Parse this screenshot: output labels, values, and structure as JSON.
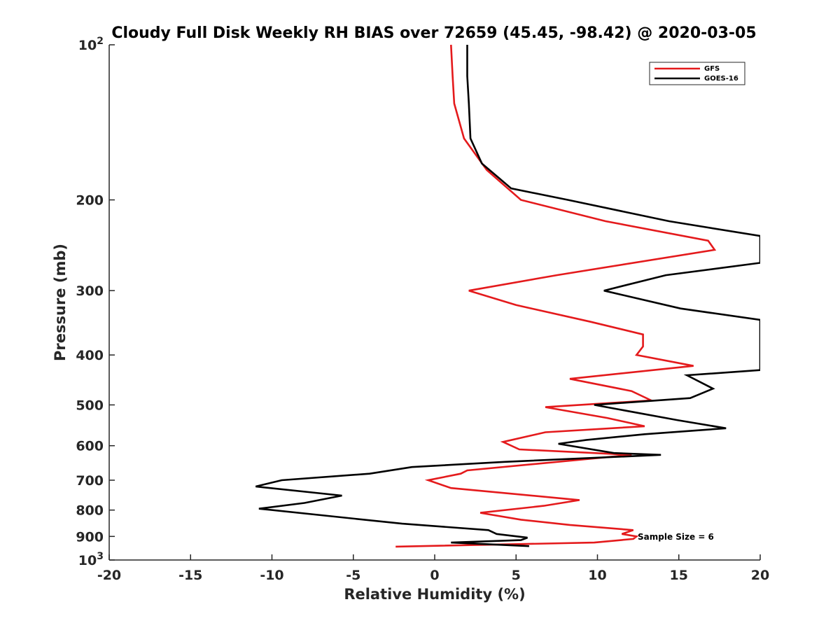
{
  "chart_data": {
    "type": "line",
    "title": "Cloudy Full Disk Weekly RH BIAS over 72659 (45.45, -98.42) @ 2020-03-05",
    "xlabel": "Relative Humidity (%)",
    "ylabel": "Pressure (mb)",
    "xlim": [
      -20,
      20
    ],
    "ylim": [
      100,
      1000
    ],
    "yscale": "log",
    "y_reversed": true,
    "xticks": [
      -20,
      -15,
      -10,
      -5,
      0,
      5,
      10,
      15,
      20
    ],
    "yticks": [
      {
        "value": 100,
        "label": "10",
        "sup": "2"
      },
      {
        "value": 200,
        "label": "200",
        "sup": ""
      },
      {
        "value": 300,
        "label": "300",
        "sup": ""
      },
      {
        "value": 400,
        "label": "400",
        "sup": ""
      },
      {
        "value": 500,
        "label": "500",
        "sup": ""
      },
      {
        "value": 600,
        "label": "600",
        "sup": ""
      },
      {
        "value": 700,
        "label": "700",
        "sup": ""
      },
      {
        "value": 800,
        "label": "800",
        "sup": ""
      },
      {
        "value": 900,
        "label": "900",
        "sup": ""
      },
      {
        "value": 1000,
        "label": "10",
        "sup": "3"
      }
    ],
    "grid": false,
    "legend_position": "top-right",
    "annotation": "Sample Size = 6",
    "series": [
      {
        "name": "GFS",
        "color": "#e41a1c",
        "points": [
          [
            1.0,
            100
          ],
          [
            1.1,
            115
          ],
          [
            1.2,
            130
          ],
          [
            1.8,
            152
          ],
          [
            3.2,
            175
          ],
          [
            5.3,
            200
          ],
          [
            10.5,
            220
          ],
          [
            16.8,
            240
          ],
          [
            17.2,
            250
          ],
          [
            7.5,
            280
          ],
          [
            2.1,
            300
          ],
          [
            5.0,
            320
          ],
          [
            9.6,
            345
          ],
          [
            12.8,
            365
          ],
          [
            12.8,
            385
          ],
          [
            12.4,
            400
          ],
          [
            15.9,
            420
          ],
          [
            8.3,
            445
          ],
          [
            12.1,
            470
          ],
          [
            13.3,
            490
          ],
          [
            6.8,
            505
          ],
          [
            10.6,
            530
          ],
          [
            12.9,
            550
          ],
          [
            6.8,
            565
          ],
          [
            4.2,
            590
          ],
          [
            5.2,
            610
          ],
          [
            12.1,
            625
          ],
          [
            6.4,
            650
          ],
          [
            2.0,
            670
          ],
          [
            1.6,
            680
          ],
          [
            -0.4,
            700
          ],
          [
            1.0,
            725
          ],
          [
            8.9,
            765
          ],
          [
            6.7,
            785
          ],
          [
            2.8,
            810
          ],
          [
            5.3,
            835
          ],
          [
            8.3,
            855
          ],
          [
            12.2,
            875
          ],
          [
            11.5,
            890
          ],
          [
            12.4,
            900
          ],
          [
            12.2,
            910
          ],
          [
            9.8,
            925
          ],
          [
            -2.4,
            942
          ]
        ]
      },
      {
        "name": "GOES-16",
        "color": "#000000",
        "points": [
          [
            2.0,
            100
          ],
          [
            2.0,
            115
          ],
          [
            2.1,
            130
          ],
          [
            2.2,
            152
          ],
          [
            2.9,
            170
          ],
          [
            4.7,
            190
          ],
          [
            8.2,
            200
          ],
          [
            14.4,
            220
          ],
          [
            20.0,
            235
          ],
          [
            20.0,
            265
          ],
          [
            14.2,
            280
          ],
          [
            10.4,
            300
          ],
          [
            15.1,
            325
          ],
          [
            20.0,
            342
          ],
          [
            20.0,
            428
          ],
          [
            15.5,
            438
          ],
          [
            17.1,
            465
          ],
          [
            15.7,
            485
          ],
          [
            9.8,
            500
          ],
          [
            14.9,
            535
          ],
          [
            17.9,
            555
          ],
          [
            12.9,
            570
          ],
          [
            9.3,
            585
          ],
          [
            7.6,
            595
          ],
          [
            11.0,
            620
          ],
          [
            13.9,
            625
          ],
          [
            4.3,
            645
          ],
          [
            -1.4,
            660
          ],
          [
            -4.0,
            680
          ],
          [
            -9.4,
            700
          ],
          [
            -11.0,
            720
          ],
          [
            -5.7,
            750
          ],
          [
            -8.0,
            775
          ],
          [
            -10.8,
            795
          ],
          [
            -2.0,
            850
          ],
          [
            3.3,
            875
          ],
          [
            3.8,
            890
          ],
          [
            5.7,
            905
          ],
          [
            5.3,
            915
          ],
          [
            1.0,
            925
          ],
          [
            5.8,
            940
          ]
        ]
      }
    ]
  }
}
